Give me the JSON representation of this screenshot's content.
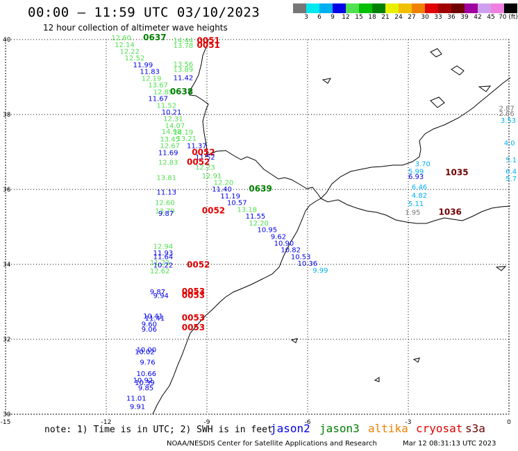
{
  "header": {
    "title": "00:00 – 11:59 UTC 03/10/2023",
    "subtitle": "12 hour collection of altimeter wave heights"
  },
  "legend": {
    "colors": [
      "#777777",
      "#00e8f0",
      "#00b0f0",
      "#0000e8",
      "#50e050",
      "#00c000",
      "#008000",
      "#e8f000",
      "#f0c000",
      "#f08000",
      "#e00000",
      "#a00000",
      "#700000",
      "#a000a0",
      "#d0a0f0",
      "#f080e0",
      "#000000"
    ],
    "labels": [
      "3",
      "6",
      "9",
      "12",
      "15",
      "18",
      "21",
      "24",
      "27",
      "30",
      "33",
      "36",
      "39",
      "42",
      "45",
      "70 (ft)"
    ]
  },
  "map": {
    "lon_range": [
      -15,
      0
    ],
    "lat_range": [
      30,
      40
    ],
    "x_ticks": [
      "-15",
      "-12",
      "-9",
      "-6",
      "-3",
      "0"
    ],
    "y_ticks": [
      "40",
      "38",
      "36",
      "34",
      "32",
      "30"
    ],
    "grid": "dotted"
  },
  "observations": [
    {
      "text": "12.60",
      "lon": -11.85,
      "lat": 39.98,
      "color": "#50e050"
    },
    {
      "text": "0637",
      "lon": -10.9,
      "lat": 39.98,
      "color": "#008000",
      "pass": true
    },
    {
      "text": "12.14",
      "lon": -11.75,
      "lat": 39.8,
      "color": "#50e050"
    },
    {
      "text": "12.22",
      "lon": -11.6,
      "lat": 39.62,
      "color": "#50e050"
    },
    {
      "text": "12.52",
      "lon": -11.45,
      "lat": 39.44,
      "color": "#50e050"
    },
    {
      "text": "11.99",
      "lon": -11.2,
      "lat": 39.26,
      "color": "#0000e8"
    },
    {
      "text": "11.83",
      "lon": -11.0,
      "lat": 39.08,
      "color": "#0000e8"
    },
    {
      "text": "12.19",
      "lon": -10.95,
      "lat": 38.9,
      "color": "#50e050"
    },
    {
      "text": "13.67",
      "lon": -10.75,
      "lat": 38.72,
      "color": "#50e050"
    },
    {
      "text": "12.89",
      "lon": -10.6,
      "lat": 38.54,
      "color": "#50e050"
    },
    {
      "text": "0638",
      "lon": -10.1,
      "lat": 38.54,
      "color": "#008000",
      "pass": true
    },
    {
      "text": "11.67",
      "lon": -10.75,
      "lat": 38.36,
      "color": "#0000e8"
    },
    {
      "text": "11.52",
      "lon": -10.5,
      "lat": 38.18,
      "color": "#50e050"
    },
    {
      "text": "10.21",
      "lon": -10.35,
      "lat": 38.0,
      "color": "#0000e8"
    },
    {
      "text": "12.31",
      "lon": -10.3,
      "lat": 37.82,
      "color": "#50e050"
    },
    {
      "text": "14.07",
      "lon": -10.25,
      "lat": 37.64,
      "color": "#50e050"
    },
    {
      "text": "14.19",
      "lon": -10.0,
      "lat": 37.46,
      "color": "#50e050"
    },
    {
      "text": "14.98",
      "lon": -10.35,
      "lat": 37.48,
      "color": "#50e050"
    },
    {
      "text": "13.45",
      "lon": -10.4,
      "lat": 37.28,
      "color": "#50e050"
    },
    {
      "text": "13.21",
      "lon": -9.9,
      "lat": 37.3,
      "color": "#50e050"
    },
    {
      "text": "12.67",
      "lon": -10.4,
      "lat": 37.1,
      "color": "#50e050"
    },
    {
      "text": "11.37",
      "lon": -9.6,
      "lat": 37.1,
      "color": "#0000e8"
    },
    {
      "text": "11.69",
      "lon": -10.45,
      "lat": 36.92,
      "color": "#0000e8"
    },
    {
      "text": "0052",
      "lon": -9.45,
      "lat": 36.92,
      "color": "#e00000",
      "pass": true
    },
    {
      "text": "11.52",
      "lon": -9.35,
      "lat": 36.8,
      "color": "#0000e8"
    },
    {
      "text": "12.83",
      "lon": -10.45,
      "lat": 36.66,
      "color": "#50e050"
    },
    {
      "text": "0052",
      "lon": -9.6,
      "lat": 36.66,
      "color": "#e00000",
      "pass": true
    },
    {
      "text": "12.23",
      "lon": -9.35,
      "lat": 36.53,
      "color": "#50e050"
    },
    {
      "text": "12.91",
      "lon": -9.15,
      "lat": 36.3,
      "color": "#50e050"
    },
    {
      "text": "13.81",
      "lon": -10.5,
      "lat": 36.25,
      "color": "#50e050"
    },
    {
      "text": "12.20",
      "lon": -8.8,
      "lat": 36.12,
      "color": "#50e050"
    },
    {
      "text": "11.40",
      "lon": -8.85,
      "lat": 35.94,
      "color": "#0000e8"
    },
    {
      "text": "0639",
      "lon": -7.75,
      "lat": 35.94,
      "color": "#008000",
      "pass": true
    },
    {
      "text": "11.13",
      "lon": -10.5,
      "lat": 35.86,
      "color": "#0000e8"
    },
    {
      "text": "11.19",
      "lon": -8.6,
      "lat": 35.76,
      "color": "#0000e8"
    },
    {
      "text": "12.60",
      "lon": -10.55,
      "lat": 35.58,
      "color": "#50e050"
    },
    {
      "text": "10.57",
      "lon": -8.4,
      "lat": 35.58,
      "color": "#0000e8"
    },
    {
      "text": "13.79",
      "lon": -10.55,
      "lat": 35.36,
      "color": "#50e050"
    },
    {
      "text": "9.87",
      "lon": -10.45,
      "lat": 35.3,
      "color": "#0000e8"
    },
    {
      "text": "0052",
      "lon": -9.15,
      "lat": 35.36,
      "color": "#e00000",
      "pass": true
    },
    {
      "text": "13.18",
      "lon": -8.1,
      "lat": 35.4,
      "color": "#50e050"
    },
    {
      "text": "11.55",
      "lon": -7.85,
      "lat": 35.22,
      "color": "#0000e8"
    },
    {
      "text": "12.20",
      "lon": -7.75,
      "lat": 35.04,
      "color": "#50e050"
    },
    {
      "text": "10.95",
      "lon": -7.5,
      "lat": 34.86,
      "color": "#0000e8"
    },
    {
      "text": "9.62",
      "lon": -7.1,
      "lat": 34.68,
      "color": "#0000e8"
    },
    {
      "text": "12.94",
      "lon": -10.6,
      "lat": 34.42,
      "color": "#50e050"
    },
    {
      "text": "10.90",
      "lon": -7.0,
      "lat": 34.5,
      "color": "#0000e8"
    },
    {
      "text": "11.93",
      "lon": -10.6,
      "lat": 34.24,
      "color": "#0000e8"
    },
    {
      "text": "10.82",
      "lon": -6.8,
      "lat": 34.32,
      "color": "#0000e8"
    },
    {
      "text": "11.64",
      "lon": -10.6,
      "lat": 34.14,
      "color": "#0000e8"
    },
    {
      "text": "10.53",
      "lon": -6.5,
      "lat": 34.14,
      "color": "#0000e8"
    },
    {
      "text": "11.23",
      "lon": -10.7,
      "lat": 33.98,
      "color": "#50e050"
    },
    {
      "text": "10.22",
      "lon": -10.6,
      "lat": 33.92,
      "color": "#0000e8"
    },
    {
      "text": "0052",
      "lon": -9.6,
      "lat": 33.92,
      "color": "#e00000",
      "pass": true
    },
    {
      "text": "10.36",
      "lon": -6.3,
      "lat": 33.96,
      "color": "#0000e8"
    },
    {
      "text": "12.62",
      "lon": -10.7,
      "lat": 33.76,
      "color": "#50e050"
    },
    {
      "text": "9.99",
      "lon": -5.85,
      "lat": 33.78,
      "color": "#00b0f0"
    },
    {
      "text": "9.87",
      "lon": -10.7,
      "lat": 33.2,
      "color": "#0000e8"
    },
    {
      "text": "9.94",
      "lon": -10.6,
      "lat": 33.1,
      "color": "#0000e8"
    },
    {
      "text": "0053",
      "lon": -9.75,
      "lat": 33.2,
      "color": "#e00000",
      "pass": true
    },
    {
      "text": "0053",
      "lon": -9.75,
      "lat": 33.1,
      "color": "#e00000",
      "pass": true
    },
    {
      "text": "10.41",
      "lon": -10.9,
      "lat": 32.56,
      "color": "#0000e8"
    },
    {
      "text": "11.41",
      "lon": -10.85,
      "lat": 32.5,
      "color": "#0000e8"
    },
    {
      "text": "0053",
      "lon": -9.75,
      "lat": 32.5,
      "color": "#e00000",
      "pass": true
    },
    {
      "text": "9.60",
      "lon": -10.95,
      "lat": 32.34,
      "color": "#0000e8"
    },
    {
      "text": "9.06",
      "lon": -10.95,
      "lat": 32.2,
      "color": "#0000e8"
    },
    {
      "text": "0053",
      "lon": -9.75,
      "lat": 32.24,
      "color": "#e00000",
      "pass": true
    },
    {
      "text": "10.00",
      "lon": -11.1,
      "lat": 31.66,
      "color": "#0000e8"
    },
    {
      "text": "10.02",
      "lon": -11.15,
      "lat": 31.6,
      "color": "#0000e8"
    },
    {
      "text": "9.76",
      "lon": -11.0,
      "lat": 31.32,
      "color": "#0000e8"
    },
    {
      "text": "10.66",
      "lon": -11.1,
      "lat": 31.02,
      "color": "#0000e8"
    },
    {
      "text": "10.92",
      "lon": -11.2,
      "lat": 30.84,
      "color": "#0000e8"
    },
    {
      "text": "10.39",
      "lon": -11.15,
      "lat": 30.78,
      "color": "#0000e8"
    },
    {
      "text": "9.85",
      "lon": -11.05,
      "lat": 30.64,
      "color": "#0000e8"
    },
    {
      "text": "11.01",
      "lon": -11.4,
      "lat": 30.36,
      "color": "#0000e8"
    },
    {
      "text": "9.91",
      "lon": -11.3,
      "lat": 30.14,
      "color": "#0000e8"
    },
    {
      "text": "14.44",
      "lon": -10.0,
      "lat": 39.92,
      "color": "#50e050"
    },
    {
      "text": "13.78",
      "lon": -10.0,
      "lat": 39.78,
      "color": "#50e050"
    },
    {
      "text": "0051",
      "lon": -9.3,
      "lat": 39.9,
      "color": "#e00000",
      "pass": true
    },
    {
      "text": "0051",
      "lon": -9.3,
      "lat": 39.78,
      "color": "#e00000",
      "pass": true
    },
    {
      "text": "13.56",
      "lon": -10.0,
      "lat": 39.28,
      "color": "#50e050"
    },
    {
      "text": "13.89",
      "lon": -10.0,
      "lat": 39.14,
      "color": "#50e050"
    },
    {
      "text": "11.42",
      "lon": -10.0,
      "lat": 38.92,
      "color": "#0000e8"
    },
    {
      "text": "3.70",
      "lon": -2.8,
      "lat": 36.62,
      "color": "#00b0f0"
    },
    {
      "text": "5.99",
      "lon": -3.0,
      "lat": 36.42,
      "color": "#00b0f0"
    },
    {
      "text": "6.93",
      "lon": -3.0,
      "lat": 36.28,
      "color": "#0000e8"
    },
    {
      "text": "1035",
      "lon": -1.9,
      "lat": 36.38,
      "color": "#700000",
      "pass": true
    },
    {
      "text": "6.46",
      "lon": -2.9,
      "lat": 36.0,
      "color": "#00b0f0"
    },
    {
      "text": "4.82",
      "lon": -2.9,
      "lat": 35.78,
      "color": "#00b0f0"
    },
    {
      "text": "5.11",
      "lon": -3.0,
      "lat": 35.56,
      "color": "#00b0f0"
    },
    {
      "text": "1.95",
      "lon": -3.1,
      "lat": 35.32,
      "color": "#777777"
    },
    {
      "text": "1036",
      "lon": -2.1,
      "lat": 35.32,
      "color": "#700000",
      "pass": true
    },
    {
      "text": "2.87",
      "lon": -0.3,
      "lat": 38.1,
      "color": "#777777"
    },
    {
      "text": "2.86",
      "lon": -0.3,
      "lat": 37.96,
      "color": "#777777"
    },
    {
      "text": "3.53",
      "lon": -0.25,
      "lat": 37.78,
      "color": "#00b0f0"
    },
    {
      "text": "4.0",
      "lon": -0.15,
      "lat": 37.18,
      "color": "#00b0f0"
    },
    {
      "text": "5.1",
      "lon": -0.1,
      "lat": 36.72,
      "color": "#00b0f0"
    },
    {
      "text": "6.4",
      "lon": -0.1,
      "lat": 36.42,
      "color": "#00b0f0"
    },
    {
      "text": "5.7",
      "lon": -0.1,
      "lat": 36.22,
      "color": "#00b0f0"
    }
  ],
  "footer": {
    "note": "note: 1) Time is in UTC; 2) SWH is in feet",
    "satellites": [
      {
        "name": "jason2",
        "color": "#0000e8"
      },
      {
        "name": "jason3",
        "color": "#008000"
      },
      {
        "name": "altika",
        "color": "#f08000"
      },
      {
        "name": "cryosat",
        "color": "#e00000"
      },
      {
        "name": "s3a",
        "color": "#700000"
      }
    ],
    "credit": "NOAA/NESDIS Center for Satellite Applications and Research",
    "timestamp": "Mar 12 08:31:13 UTC 2023"
  }
}
